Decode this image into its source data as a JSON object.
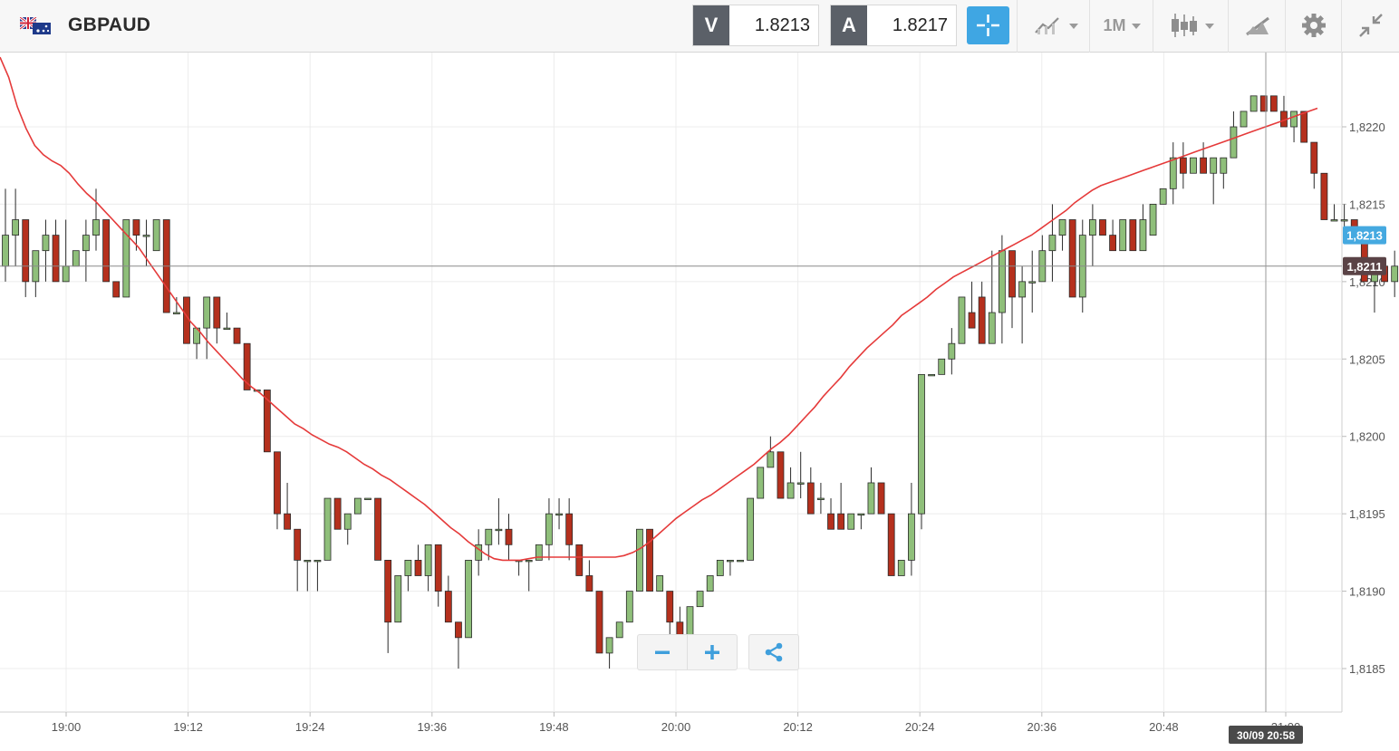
{
  "header": {
    "symbol": "GBPAUD",
    "bid_tag": "V",
    "bid_price": "1.8213",
    "ask_tag": "A",
    "ask_price": "1.8217",
    "timeframe": "1M"
  },
  "colors": {
    "bull": "#8fbf7a",
    "bear": "#b5301d",
    "ma_line": "#e53a3a",
    "accent": "#3fa6e3",
    "current_price_label": "#45a9e0",
    "crosshair_label": "#5a4346"
  },
  "icons": [
    "uk-australia-flag-icon",
    "crosshair-icon",
    "line-chart-icon",
    "candlestick-icon",
    "draw-tools-icon",
    "gear-icon",
    "collapse-icon",
    "zoom-out-icon",
    "zoom-in-icon",
    "share-icon"
  ],
  "chart_data": {
    "type": "candlestick",
    "interval": "1M",
    "ylim": [
      1.8181,
      1.82245
    ],
    "y_ticks": [
      "1,8185",
      "1,8190",
      "1,8195",
      "1,8200",
      "1,8205",
      "1,8210",
      "1,8215",
      "1,8220"
    ],
    "x_ticks": [
      "19:00",
      "19:12",
      "19:24",
      "19:36",
      "19:48",
      "20:00",
      "20:12",
      "20:24",
      "20:36",
      "20:48",
      "21:00"
    ],
    "current_price": 1.8213,
    "current_price_label": "1,8213",
    "crosshair_price": 1.8211,
    "crosshair_price_label": "1,8211",
    "crosshair_time_label": "30/09 20:58",
    "candles_ohlc": [
      [
        1.8211,
        1.8216,
        1.821,
        1.8213
      ],
      [
        1.8213,
        1.8216,
        1.8211,
        1.8214
      ],
      [
        1.8214,
        1.8214,
        1.8209,
        1.821
      ],
      [
        1.821,
        1.8212,
        1.8209,
        1.8212
      ],
      [
        1.8212,
        1.8214,
        1.821,
        1.8213
      ],
      [
        1.8213,
        1.8214,
        1.821,
        1.821
      ],
      [
        1.821,
        1.8214,
        1.821,
        1.8211
      ],
      [
        1.8211,
        1.8212,
        1.8211,
        1.8212
      ],
      [
        1.8212,
        1.8214,
        1.821,
        1.8213
      ],
      [
        1.8213,
        1.8216,
        1.8212,
        1.8214
      ],
      [
        1.8214,
        1.8214,
        1.821,
        1.821
      ],
      [
        1.821,
        1.821,
        1.8209,
        1.8209
      ],
      [
        1.8209,
        1.8214,
        1.8209,
        1.8214
      ],
      [
        1.8214,
        1.8214,
        1.8212,
        1.8213
      ],
      [
        1.8213,
        1.8214,
        1.8211,
        1.8213
      ],
      [
        1.8212,
        1.8214,
        1.8212,
        1.8214
      ],
      [
        1.8214,
        1.8214,
        1.8208,
        1.8208
      ],
      [
        1.8208,
        1.8209,
        1.8208,
        1.8208
      ],
      [
        1.8209,
        1.8209,
        1.8206,
        1.8206
      ],
      [
        1.8206,
        1.8207,
        1.8205,
        1.8207
      ],
      [
        1.8207,
        1.8209,
        1.8205,
        1.8209
      ],
      [
        1.8209,
        1.8209,
        1.8206,
        1.8207
      ],
      [
        1.8207,
        1.8208,
        1.8207,
        1.8207
      ],
      [
        1.8207,
        1.8207,
        1.8206,
        1.8206
      ],
      [
        1.8206,
        1.8206,
        1.8203,
        1.8203
      ],
      [
        1.8203,
        1.8203,
        1.8203,
        1.8203
      ],
      [
        1.8203,
        1.8203,
        1.8199,
        1.8199
      ],
      [
        1.8199,
        1.8199,
        1.8194,
        1.8195
      ],
      [
        1.8195,
        1.8197,
        1.8194,
        1.8194
      ],
      [
        1.8194,
        1.8194,
        1.819,
        1.8192
      ],
      [
        1.8192,
        1.8192,
        1.819,
        1.8192
      ],
      [
        1.8192,
        1.8192,
        1.819,
        1.8192
      ],
      [
        1.8192,
        1.8196,
        1.8192,
        1.8196
      ],
      [
        1.8196,
        1.8196,
        1.8194,
        1.8194
      ],
      [
        1.8194,
        1.8195,
        1.8193,
        1.8195
      ],
      [
        1.8195,
        1.8196,
        1.8195,
        1.8196
      ],
      [
        1.8196,
        1.8196,
        1.8196,
        1.8196
      ],
      [
        1.8196,
        1.8196,
        1.8192,
        1.8192
      ],
      [
        1.8192,
        1.8192,
        1.8186,
        1.8188
      ],
      [
        1.8188,
        1.8191,
        1.8188,
        1.8191
      ],
      [
        1.8191,
        1.8192,
        1.819,
        1.8192
      ],
      [
        1.8192,
        1.8193,
        1.8191,
        1.8191
      ],
      [
        1.8191,
        1.8193,
        1.819,
        1.8193
      ],
      [
        1.8193,
        1.8193,
        1.8189,
        1.819
      ],
      [
        1.819,
        1.8191,
        1.8188,
        1.8188
      ],
      [
        1.8188,
        1.8188,
        1.8185,
        1.8187
      ],
      [
        1.8187,
        1.8192,
        1.8187,
        1.8192
      ],
      [
        1.8192,
        1.8194,
        1.8191,
        1.8193
      ],
      [
        1.8193,
        1.8194,
        1.8192,
        1.8194
      ],
      [
        1.8194,
        1.8196,
        1.8193,
        1.8194
      ],
      [
        1.8194,
        1.8195,
        1.8192,
        1.8193
      ],
      [
        1.8192,
        1.8192,
        1.8191,
        1.8192
      ],
      [
        1.8192,
        1.8192,
        1.819,
        1.8192
      ],
      [
        1.8192,
        1.8193,
        1.8192,
        1.8193
      ],
      [
        1.8193,
        1.8196,
        1.8192,
        1.8195
      ],
      [
        1.8195,
        1.8196,
        1.8194,
        1.8195
      ],
      [
        1.8195,
        1.8196,
        1.8192,
        1.8193
      ],
      [
        1.8193,
        1.8193,
        1.8191,
        1.8191
      ],
      [
        1.8191,
        1.8192,
        1.819,
        1.819
      ],
      [
        1.819,
        1.819,
        1.8186,
        1.8186
      ],
      [
        1.8186,
        1.8187,
        1.8185,
        1.8187
      ],
      [
        1.8187,
        1.8188,
        1.8187,
        1.8188
      ],
      [
        1.8188,
        1.819,
        1.8188,
        1.819
      ],
      [
        1.819,
        1.8194,
        1.819,
        1.8194
      ],
      [
        1.8194,
        1.8194,
        1.819,
        1.819
      ],
      [
        1.819,
        1.8191,
        1.819,
        1.8191
      ],
      [
        1.819,
        1.819,
        1.8187,
        1.8188
      ],
      [
        1.8188,
        1.8189,
        1.8187,
        1.8187
      ],
      [
        1.8187,
        1.8188,
        1.8187,
        1.8189
      ],
      [
        1.8189,
        1.819,
        1.8189,
        1.819
      ],
      [
        1.819,
        1.8191,
        1.819,
        1.8191
      ],
      [
        1.8191,
        1.8192,
        1.8191,
        1.8192
      ],
      [
        1.8192,
        1.8192,
        1.8191,
        1.8192
      ],
      [
        1.8192,
        1.8192,
        1.8192,
        1.8192
      ],
      [
        1.8192,
        1.8196,
        1.8192,
        1.8196
      ],
      [
        1.8196,
        1.8198,
        1.8196,
        1.8198
      ],
      [
        1.8198,
        1.82,
        1.8198,
        1.8199
      ],
      [
        1.8199,
        1.8199,
        1.8196,
        1.8196
      ],
      [
        1.8196,
        1.8198,
        1.8196,
        1.8197
      ],
      [
        1.8197,
        1.8199,
        1.8196,
        1.8197
      ],
      [
        1.8197,
        1.8198,
        1.8195,
        1.8195
      ],
      [
        1.8196,
        1.8197,
        1.8195,
        1.8196
      ],
      [
        1.8195,
        1.8196,
        1.8194,
        1.8194
      ],
      [
        1.8195,
        1.8197,
        1.8194,
        1.8194
      ],
      [
        1.8194,
        1.8195,
        1.8194,
        1.8195
      ],
      [
        1.8195,
        1.8195,
        1.8194,
        1.8195
      ],
      [
        1.8195,
        1.8198,
        1.8195,
        1.8197
      ],
      [
        1.8197,
        1.8197,
        1.8195,
        1.8195
      ],
      [
        1.8195,
        1.8195,
        1.8191,
        1.8191
      ],
      [
        1.8191,
        1.8192,
        1.8191,
        1.8192
      ],
      [
        1.8192,
        1.8197,
        1.8191,
        1.8195
      ],
      [
        1.8195,
        1.8204,
        1.8194,
        1.8204
      ],
      [
        1.8204,
        1.8204,
        1.8204,
        1.8204
      ],
      [
        1.8204,
        1.8205,
        1.8204,
        1.8205
      ],
      [
        1.8205,
        1.8207,
        1.8204,
        1.8206
      ],
      [
        1.8206,
        1.8209,
        1.8206,
        1.8209
      ],
      [
        1.8208,
        1.821,
        1.8207,
        1.8207
      ],
      [
        1.8209,
        1.821,
        1.8206,
        1.8206
      ],
      [
        1.8206,
        1.8212,
        1.8206,
        1.8208
      ],
      [
        1.8208,
        1.8213,
        1.8206,
        1.8212
      ],
      [
        1.8212,
        1.8212,
        1.8207,
        1.8209
      ],
      [
        1.8209,
        1.8211,
        1.8206,
        1.821
      ],
      [
        1.821,
        1.8212,
        1.8208,
        1.821
      ],
      [
        1.821,
        1.8213,
        1.821,
        1.8212
      ],
      [
        1.8212,
        1.8215,
        1.821,
        1.8213
      ],
      [
        1.8213,
        1.8214,
        1.8212,
        1.8214
      ],
      [
        1.8214,
        1.8214,
        1.8209,
        1.8209
      ],
      [
        1.8209,
        1.8214,
        1.8208,
        1.8213
      ],
      [
        1.8213,
        1.8215,
        1.8211,
        1.8214
      ],
      [
        1.8214,
        1.8214,
        1.8213,
        1.8213
      ],
      [
        1.8213,
        1.8214,
        1.8212,
        1.8212
      ],
      [
        1.8212,
        1.8214,
        1.8212,
        1.8214
      ],
      [
        1.8214,
        1.8214,
        1.8212,
        1.8212
      ],
      [
        1.8212,
        1.8215,
        1.8212,
        1.8214
      ],
      [
        1.8213,
        1.8215,
        1.8213,
        1.8215
      ],
      [
        1.8215,
        1.8216,
        1.8215,
        1.8216
      ],
      [
        1.8216,
        1.8219,
        1.8215,
        1.8218
      ],
      [
        1.8218,
        1.8219,
        1.8216,
        1.8217
      ],
      [
        1.8217,
        1.8218,
        1.8217,
        1.8218
      ],
      [
        1.8218,
        1.8219,
        1.8217,
        1.8217
      ],
      [
        1.8217,
        1.8218,
        1.8215,
        1.8218
      ],
      [
        1.8217,
        1.8218,
        1.8216,
        1.8218
      ],
      [
        1.8218,
        1.8221,
        1.8218,
        1.822
      ],
      [
        1.822,
        1.8221,
        1.822,
        1.8221
      ],
      [
        1.8221,
        1.8222,
        1.8221,
        1.8222
      ],
      [
        1.8222,
        1.8222,
        1.8221,
        1.8221
      ],
      [
        1.8222,
        1.8222,
        1.8221,
        1.8221
      ],
      [
        1.8221,
        1.8222,
        1.822,
        1.822
      ],
      [
        1.822,
        1.8221,
        1.8219,
        1.8221
      ],
      [
        1.8221,
        1.8221,
        1.8219,
        1.8219
      ],
      [
        1.8219,
        1.8219,
        1.8216,
        1.8217
      ],
      [
        1.8217,
        1.8217,
        1.8214,
        1.8214
      ],
      [
        1.8214,
        1.8215,
        1.8214,
        1.8214
      ],
      [
        1.8214,
        1.8215,
        1.8213,
        1.8214
      ],
      [
        1.8214,
        1.8214,
        1.8213,
        1.8213
      ],
      [
        1.8213,
        1.8213,
        1.821,
        1.821
      ],
      [
        1.821,
        1.8211,
        1.8208,
        1.8211
      ],
      [
        1.8211,
        1.8211,
        1.821,
        1.821
      ],
      [
        1.821,
        1.8212,
        1.8209,
        1.8211
      ],
      [
        1.8211,
        1.8213,
        1.8208,
        1.8213
      ],
      [
        1.8213,
        1.8214,
        1.8212,
        1.8214
      ],
      [
        1.8214,
        1.8217,
        1.8214,
        1.8217
      ],
      [
        1.8217,
        1.8219,
        1.8215,
        1.8215
      ],
      [
        1.8215,
        1.8215,
        1.8213,
        1.8213
      ]
    ],
    "moving_average": [
      1.82245,
      1.82232,
      1.82213,
      1.82199,
      1.82188,
      1.82182,
      1.82178,
      1.82175,
      1.8217,
      1.82163,
      1.82157,
      1.82152,
      1.82146,
      1.8214,
      1.82134,
      1.82128,
      1.82122,
      1.82114,
      1.82106,
      1.82098,
      1.8209,
      1.82082,
      1.82074,
      1.82068,
      1.82061,
      1.82055,
      1.82049,
      1.82043,
      1.82037,
      1.82032,
      1.82028,
      1.82023,
      1.82018,
      1.82013,
      1.82008,
      1.82005,
      1.82001,
      1.81998,
      1.81995,
      1.81993,
      1.8199,
      1.81986,
      1.81982,
      1.81979,
      1.81975,
      1.81972,
      1.81968,
      1.81964,
      1.8196,
      1.81956,
      1.81951,
      1.81946,
      1.81941,
      1.81937,
      1.81932,
      1.81928,
      1.81924,
      1.81921,
      1.8192,
      1.8192,
      1.8192,
      1.81921,
      1.81922,
      1.81922,
      1.81922,
      1.81922,
      1.81922,
      1.81922,
      1.81922,
      1.81922,
      1.81922,
      1.81922,
      1.81923,
      1.81925,
      1.81928,
      1.81932,
      1.81937,
      1.81942,
      1.81947,
      1.81951,
      1.81955,
      1.81959,
      1.81962,
      1.81966,
      1.8197,
      1.81974,
      1.81978,
      1.81982,
      1.81987,
      1.81992,
      1.81996,
      1.82001,
      1.82007,
      1.82013,
      1.82019,
      1.82026,
      1.82032,
      1.82038,
      1.82045,
      1.82051,
      1.82057,
      1.82062,
      1.82067,
      1.82072,
      1.82078,
      1.82082,
      1.82086,
      1.8209,
      1.82095,
      1.82099,
      1.82103,
      1.82106,
      1.82109,
      1.82112,
      1.82115,
      1.82118,
      1.82121,
      1.82124,
      1.82127,
      1.8213,
      1.82134,
      1.82138,
      1.82142,
      1.82146,
      1.82151,
      1.82155,
      1.82159,
      1.82162,
      1.82164,
      1.82166,
      1.82168,
      1.8217,
      1.82172,
      1.82174,
      1.82176,
      1.82178,
      1.8218,
      1.82182,
      1.82184,
      1.82186,
      1.82188,
      1.8219,
      1.82192,
      1.82194,
      1.82196,
      1.82198,
      1.822,
      1.82202,
      1.82204,
      1.82206,
      1.82208,
      1.8221,
      1.82212
    ],
    "grid": true
  }
}
